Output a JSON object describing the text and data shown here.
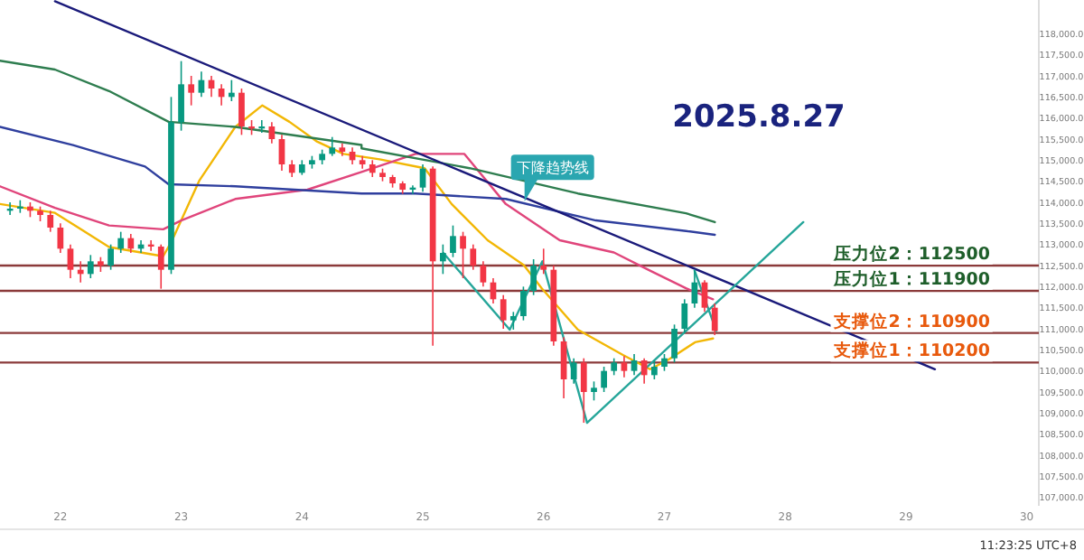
{
  "chart_data": {
    "type": "candlestick",
    "title": "2025.8.27",
    "x": [
      21.583,
      21.667,
      21.75,
      21.833,
      21.917,
      22.0,
      22.083,
      22.167,
      22.25,
      22.333,
      22.417,
      22.5,
      22.583,
      22.667,
      22.75,
      22.833,
      22.917,
      23.0,
      23.083,
      23.167,
      23.25,
      23.333,
      23.417,
      23.5,
      23.583,
      23.667,
      23.75,
      23.833,
      23.917,
      24.0,
      24.083,
      24.167,
      24.25,
      24.333,
      24.417,
      24.5,
      24.583,
      24.667,
      24.75,
      24.833,
      24.917,
      25.0,
      25.083,
      25.167,
      25.25,
      25.333,
      25.417,
      25.5,
      25.583,
      25.667,
      25.75,
      25.833,
      25.917,
      26.0,
      26.083,
      26.167,
      26.25,
      26.333,
      26.417,
      26.5,
      26.583,
      26.667,
      26.75,
      26.833,
      26.917,
      27.0,
      27.083,
      27.167,
      27.25,
      27.333,
      27.417
    ],
    "ohlc": [
      [
        113800,
        114000,
        113700,
        113850
      ],
      [
        113850,
        114050,
        113750,
        113900
      ],
      [
        113900,
        114000,
        113650,
        113800
      ],
      [
        113800,
        113900,
        113550,
        113700
      ],
      [
        113700,
        113800,
        113300,
        113400
      ],
      [
        113400,
        113500,
        112800,
        112900
      ],
      [
        112900,
        113000,
        112200,
        112400
      ],
      [
        112400,
        112600,
        112100,
        112300
      ],
      [
        112300,
        112750,
        112200,
        112600
      ],
      [
        112600,
        112700,
        112350,
        112500
      ],
      [
        112500,
        113000,
        112400,
        112900
      ],
      [
        112900,
        113300,
        112800,
        113150
      ],
      [
        113150,
        113250,
        112800,
        112900
      ],
      [
        112900,
        113100,
        112800,
        113000
      ],
      [
        113000,
        113100,
        112850,
        112950
      ],
      [
        112950,
        113000,
        111950,
        112400
      ],
      [
        112400,
        116500,
        112300,
        115900
      ],
      [
        115900,
        117350,
        115700,
        116800
      ],
      [
        116800,
        117000,
        116300,
        116600
      ],
      [
        116600,
        117100,
        116500,
        116900
      ],
      [
        116900,
        117000,
        116500,
        116700
      ],
      [
        116700,
        116800,
        116300,
        116500
      ],
      [
        116500,
        116900,
        116400,
        116600
      ],
      [
        116600,
        116700,
        115600,
        115800
      ],
      [
        115800,
        115950,
        115600,
        115750
      ],
      [
        115750,
        115950,
        115650,
        115800
      ],
      [
        115800,
        115900,
        115400,
        115500
      ],
      [
        115500,
        115600,
        114750,
        114900
      ],
      [
        114900,
        115000,
        114600,
        114700
      ],
      [
        114700,
        115000,
        114650,
        114900
      ],
      [
        114900,
        115100,
        114800,
        115000
      ],
      [
        115000,
        115250,
        114900,
        115150
      ],
      [
        115150,
        115550,
        115100,
        115300
      ],
      [
        115300,
        115400,
        115100,
        115200
      ],
      [
        115200,
        115300,
        114900,
        115000
      ],
      [
        115000,
        115100,
        114800,
        114900
      ],
      [
        114900,
        115000,
        114600,
        114700
      ],
      [
        114700,
        114800,
        114500,
        114600
      ],
      [
        114600,
        114650,
        114350,
        114450
      ],
      [
        114450,
        114500,
        114200,
        114300
      ],
      [
        114300,
        114400,
        114200,
        114350
      ],
      [
        114350,
        114900,
        114250,
        114800
      ],
      [
        114800,
        114850,
        110600,
        112600
      ],
      [
        112600,
        113000,
        112300,
        112800
      ],
      [
        112800,
        113450,
        112700,
        113200
      ],
      [
        113200,
        113300,
        112200,
        112900
      ],
      [
        112900,
        113000,
        112400,
        112500
      ],
      [
        112500,
        112600,
        112000,
        112100
      ],
      [
        112100,
        112200,
        111600,
        111700
      ],
      [
        111700,
        111800,
        111000,
        111200
      ],
      [
        111200,
        111400,
        110980,
        111300
      ],
      [
        111300,
        112000,
        111200,
        111900
      ],
      [
        111900,
        112650,
        111800,
        112500
      ],
      [
        112500,
        112900,
        112300,
        112400
      ],
      [
        112400,
        112500,
        110600,
        110700
      ],
      [
        110700,
        110800,
        109350,
        109800
      ],
      [
        109800,
        110300,
        109700,
        110200
      ],
      [
        110200,
        110300,
        108770,
        109500
      ],
      [
        109500,
        109750,
        109300,
        109600
      ],
      [
        109600,
        110100,
        109500,
        110000
      ],
      [
        110000,
        110300,
        109900,
        110200
      ],
      [
        110200,
        110350,
        109850,
        110000
      ],
      [
        110000,
        110400,
        109900,
        110250
      ],
      [
        110250,
        110300,
        109700,
        109900
      ],
      [
        109900,
        110250,
        109800,
        110100
      ],
      [
        110100,
        110400,
        110000,
        110300
      ],
      [
        110300,
        111100,
        110200,
        111000
      ],
      [
        111000,
        111700,
        110900,
        111600
      ],
      [
        111600,
        112380,
        111500,
        112100
      ],
      [
        112100,
        112150,
        111400,
        111500
      ],
      [
        111500,
        111600,
        110850,
        110950
      ]
    ],
    "series": [
      {
        "type": "line",
        "color": "#f2b705",
        "x": [
          21.5,
          21.955,
          22.403,
          22.851,
          22.925,
          23.149,
          23.448,
          23.672,
          23.896,
          24.119,
          24.343,
          24.642,
          25.015,
          25.239,
          25.537,
          25.836,
          25.985,
          26.284,
          26.657,
          26.881,
          27.03,
          27.254,
          27.403
        ],
        "values": [
          113960,
          113750,
          112940,
          112720,
          113100,
          114510,
          115790,
          116300,
          115910,
          115450,
          115150,
          115020,
          114810,
          113960,
          113100,
          112510,
          111960,
          110980,
          110380,
          110040,
          110260,
          110680,
          110770
        ]
      },
      {
        "type": "line",
        "color": "#e0457b",
        "x": [
          21.5,
          21.955,
          22.403,
          22.851,
          23.0,
          23.448,
          24.045,
          24.493,
          24.94,
          25.343,
          25.687,
          26.134,
          26.582,
          26.881,
          27.179,
          27.403
        ],
        "values": [
          114380,
          113870,
          113450,
          113360,
          113570,
          114080,
          114300,
          114720,
          115150,
          115150,
          113960,
          113100,
          112810,
          112380,
          111960,
          111700
        ]
      },
      {
        "type": "line",
        "color": "#2e7d4f",
        "x": [
          21.5,
          21.955,
          22.403,
          22.896,
          23.448,
          24.493,
          24.493,
          25.388,
          26.284,
          27.179,
          27.418
        ],
        "values": [
          117360,
          117150,
          116640,
          115910,
          115790,
          115360,
          115280,
          114810,
          114210,
          113740,
          113530
        ]
      },
      {
        "type": "line",
        "color": "#2f3f9e",
        "x": [
          21.5,
          22.104,
          22.701,
          22.896,
          23.448,
          24.493,
          24.94,
          25.687,
          26.433,
          27.179,
          27.418
        ],
        "values": [
          115790,
          115360,
          114850,
          114430,
          114380,
          114210,
          114210,
          114080,
          113570,
          113320,
          113230
        ]
      },
      {
        "type": "line",
        "color": "#1a1a7a",
        "x": [
          21.955,
          29.24
        ],
        "values": [
          118770,
          110040
        ]
      },
      {
        "type": "line",
        "color": "#26a69a",
        "x": [
          25.17,
          25.72,
          25.99,
          26.36,
          28.15
        ],
        "values": [
          112800,
          110980,
          112600,
          108770,
          113530
        ]
      },
      {
        "type": "line",
        "color": "#26a69a",
        "x": [
          27.25,
          27.43
        ],
        "values": [
          112380,
          110950
        ]
      }
    ],
    "xlim": [
      21.5,
      30.1
    ],
    "ylim": [
      106800,
      118800
    ],
    "xticks": [
      22,
      23,
      24,
      25,
      26,
      27,
      28,
      29,
      30
    ],
    "yticks": [
      {
        "value": 107000,
        "label": "107,000.0"
      },
      {
        "value": 107500,
        "label": "107,500.0"
      },
      {
        "value": 108000,
        "label": "108,000.0"
      },
      {
        "value": 108500,
        "label": "108,500.0"
      },
      {
        "value": 109000,
        "label": "109,000.0"
      },
      {
        "value": 109500,
        "label": "109,500.0"
      },
      {
        "value": 110000,
        "label": "110,000.0"
      },
      {
        "value": 110500,
        "label": "110,500.0"
      },
      {
        "value": 111000,
        "label": "111,000.0"
      },
      {
        "value": 111500,
        "label": "111,500.0"
      },
      {
        "value": 112000,
        "label": "112,000.0"
      },
      {
        "value": 112500,
        "label": "112,500.0"
      },
      {
        "value": 113000,
        "label": "113,000.0"
      },
      {
        "value": 113500,
        "label": "113,500.0"
      },
      {
        "value": 114000,
        "label": "114,000.0"
      },
      {
        "value": 114500,
        "label": "114,500.0"
      },
      {
        "value": 115000,
        "label": "115,000.0"
      },
      {
        "value": 115500,
        "label": "115,500.0"
      },
      {
        "value": 116000,
        "label": "116,000.0"
      },
      {
        "value": 116500,
        "label": "116,500.0"
      },
      {
        "value": 117000,
        "label": "117,000.0"
      },
      {
        "value": 117500,
        "label": "117,500.0"
      },
      {
        "value": 118000,
        "label": "118,000.0"
      }
    ],
    "ref_lines": [
      {
        "axis": "y",
        "value": 112500,
        "label": "压力位2：112500",
        "color": "#8b3a3a"
      },
      {
        "axis": "y",
        "value": 111900,
        "label": "压力位1：111900",
        "color": "#8b3a3a"
      },
      {
        "axis": "y",
        "value": 110900,
        "label": "支撑位2：110900",
        "color": "#8b3a3a"
      },
      {
        "axis": "y",
        "value": 110200,
        "label": "支撑位1：110200",
        "color": "#8b3a3a"
      }
    ],
    "annotations": [
      {
        "text": "下降趋势线",
        "x": 25.85,
        "y": 114100
      },
      "11:23:25 UTC+8"
    ],
    "grid": false
  }
}
